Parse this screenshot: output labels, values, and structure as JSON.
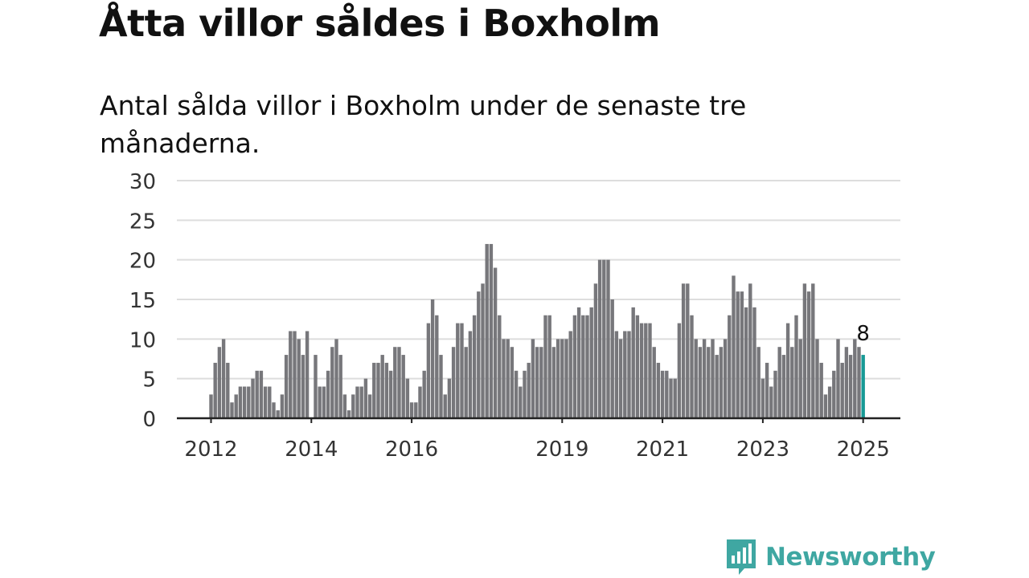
{
  "title": "Åtta villor såldes i Boxholm",
  "subtitle": "Antal sålda villor i Boxholm under de senaste tre månaderna.",
  "brand": {
    "name": "Newsworthy",
    "logo_icon": "bar-chart-speech-bubble-icon"
  },
  "colors": {
    "bar": "#77777b",
    "highlight": "#179a96",
    "grid": "#dddddd",
    "axis": "#222222",
    "brand": "#3fa7a2"
  },
  "chart_data": {
    "type": "bar",
    "title": "",
    "xlabel": "",
    "ylabel": "",
    "ylim": [
      0,
      30
    ],
    "yticks": [
      "0",
      "5",
      "10",
      "15",
      "20",
      "25",
      "30"
    ],
    "xticks": [
      {
        "label": "2012",
        "at": "2012-01"
      },
      {
        "label": "2014",
        "at": "2014-01"
      },
      {
        "label": "2016",
        "at": "2016-01"
      },
      {
        "label": "2019",
        "at": "2019-01"
      },
      {
        "label": "2021",
        "at": "2021-01"
      },
      {
        "label": "2023",
        "at": "2023-01"
      },
      {
        "label": "2025",
        "at": "2025-01"
      }
    ],
    "start_month": "2012-01",
    "values": [
      3,
      7,
      9,
      10,
      7,
      2,
      3,
      4,
      4,
      4,
      5,
      6,
      6,
      4,
      4,
      2,
      1,
      3,
      8,
      11,
      11,
      10,
      8,
      11,
      0,
      8,
      4,
      4,
      6,
      9,
      10,
      8,
      3,
      1,
      3,
      4,
      4,
      5,
      3,
      7,
      7,
      8,
      7,
      6,
      9,
      9,
      8,
      5,
      2,
      2,
      4,
      6,
      12,
      15,
      13,
      8,
      3,
      5,
      9,
      12,
      12,
      9,
      11,
      13,
      16,
      17,
      22,
      22,
      19,
      13,
      10,
      10,
      9,
      6,
      4,
      6,
      7,
      10,
      9,
      9,
      13,
      13,
      9,
      10,
      10,
      10,
      11,
      13,
      14,
      13,
      13,
      14,
      17,
      20,
      20,
      20,
      15,
      11,
      10,
      11,
      11,
      14,
      13,
      12,
      12,
      12,
      9,
      7,
      6,
      6,
      5,
      5,
      12,
      17,
      17,
      13,
      10,
      9,
      10,
      9,
      10,
      8,
      9,
      10,
      13,
      18,
      16,
      16,
      14,
      17,
      14,
      9,
      5,
      7,
      4,
      6,
      9,
      8,
      12,
      9,
      13,
      10,
      17,
      16,
      17,
      10,
      7,
      3,
      4,
      6,
      10,
      7,
      9,
      8,
      10,
      9,
      8
    ],
    "highlight_value_label": "8"
  }
}
